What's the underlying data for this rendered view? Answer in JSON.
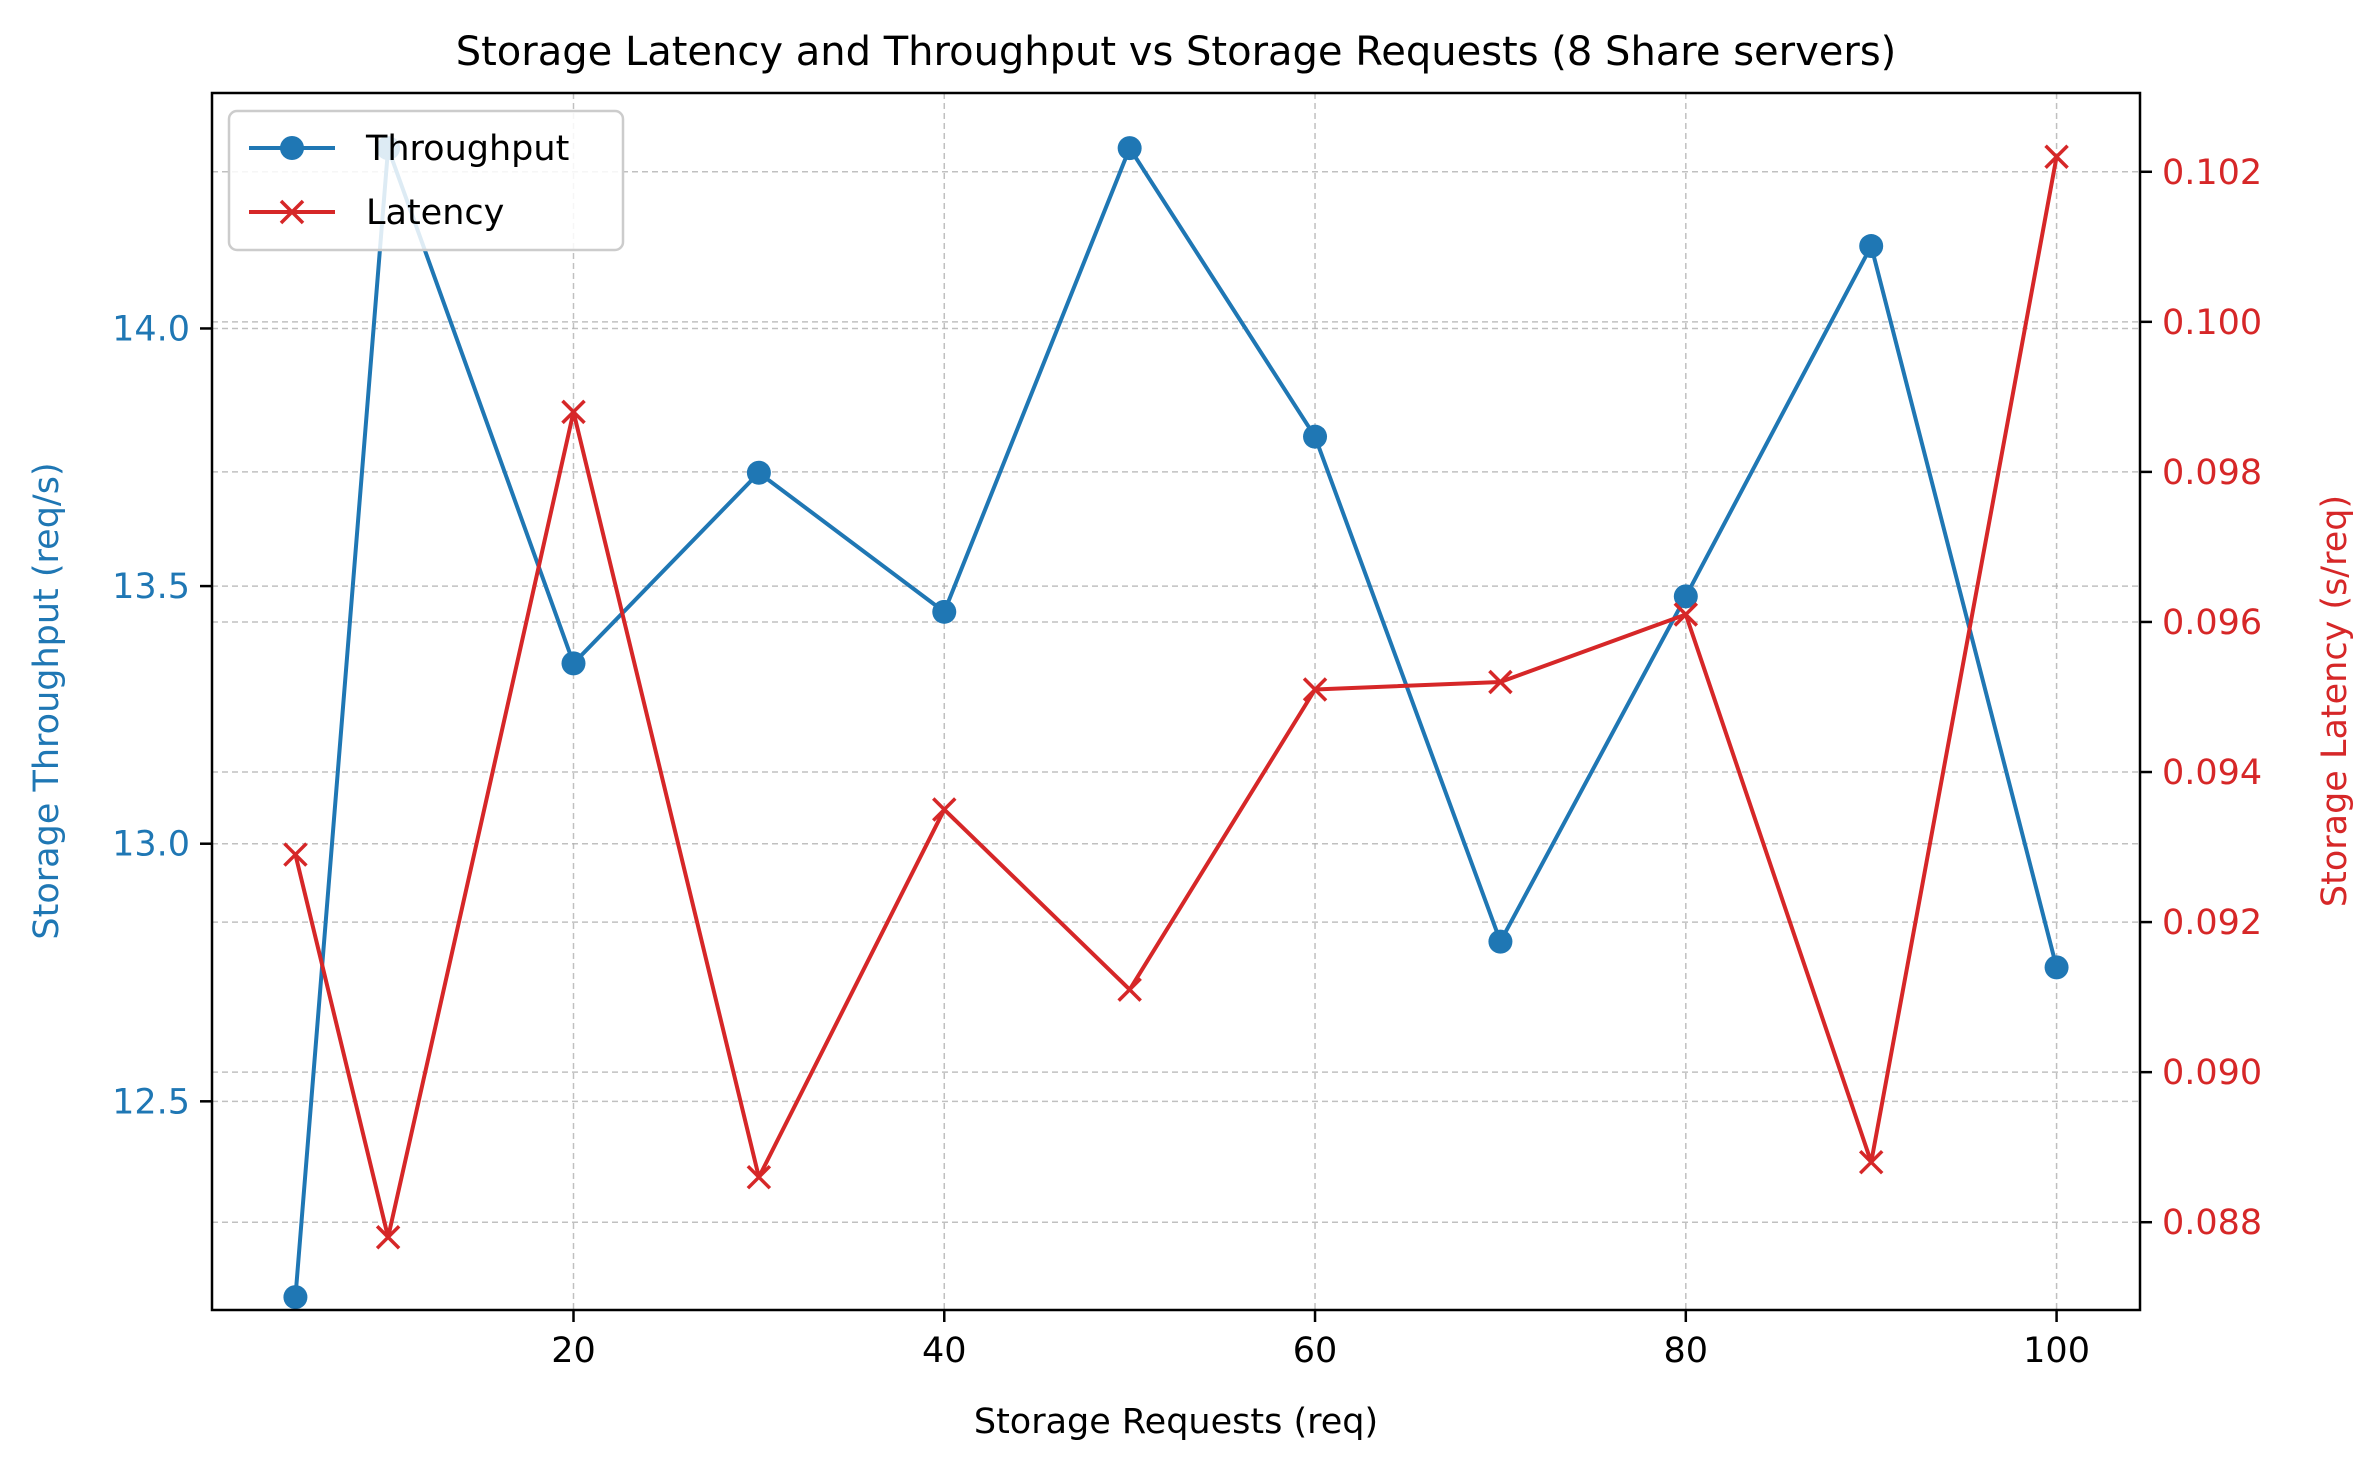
{
  "chart_data": {
    "type": "line",
    "title": "Storage Latency and Throughput vs Storage Requests (8 Share servers)",
    "xlabel": "Storage Requests (req)",
    "ylabel_left": "Storage Throughput (req/s)",
    "ylabel_right": "Storage Latency (s/req)",
    "x": [
      5,
      10,
      20,
      30,
      40,
      50,
      60,
      70,
      80,
      90,
      100
    ],
    "xlim": [
      0.5,
      104.5
    ],
    "ylim_left": [
      12.095,
      14.457
    ],
    "ylim_right": [
      0.08683,
      0.10305
    ],
    "xticks": [
      20,
      40,
      60,
      80,
      100
    ],
    "yticks_left": [
      12.5,
      13.0,
      13.5,
      14.0
    ],
    "yticks_left_labels": [
      "12.5",
      "13.0",
      "13.5",
      "14.0"
    ],
    "yticks_right": [
      0.088,
      0.09,
      0.092,
      0.094,
      0.096,
      0.098,
      0.1,
      0.102
    ],
    "yticks_right_labels": [
      "0.088",
      "0.090",
      "0.092",
      "0.094",
      "0.096",
      "0.098",
      "0.100",
      "0.102"
    ],
    "grid": true,
    "legend_position": "top-left",
    "series": [
      {
        "name": "Throughput",
        "axis": "left",
        "marker": "circle",
        "color": "#1f77b4",
        "values": [
          12.12,
          14.35,
          13.35,
          13.72,
          13.45,
          14.35,
          13.79,
          12.81,
          13.48,
          14.16,
          12.76
        ]
      },
      {
        "name": "Latency",
        "axis": "right",
        "marker": "x",
        "color": "#d62728",
        "values": [
          0.0929,
          0.0878,
          0.0988,
          0.0886,
          0.0935,
          0.0911,
          0.0951,
          0.0952,
          0.0961,
          0.0888,
          0.1022
        ]
      }
    ]
  }
}
